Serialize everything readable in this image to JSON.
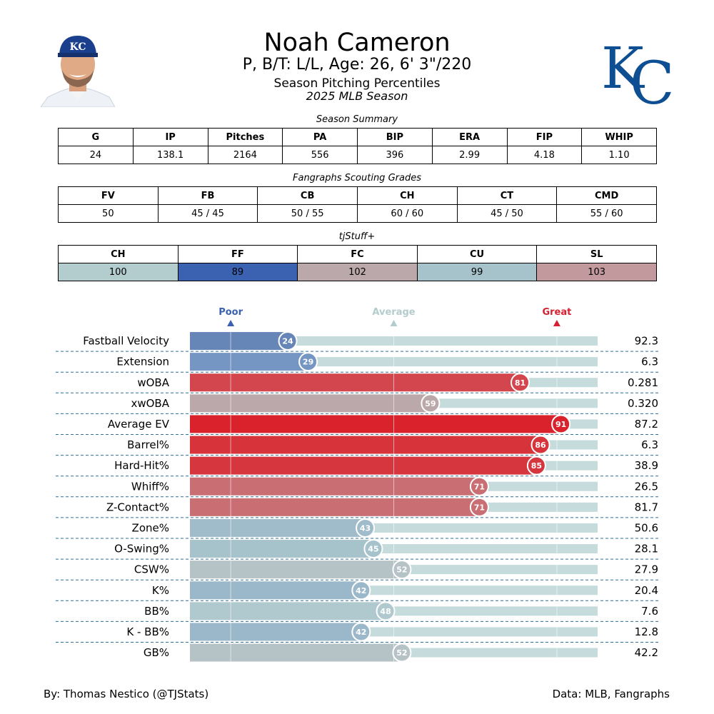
{
  "header": {
    "name": "Noah Cameron",
    "info": "P, B/T: L/L, Age: 26, 6' 3\"/220",
    "subtitle": "Season Pitching Percentiles",
    "season": "2025 MLB Season"
  },
  "summary": {
    "caption": "Season Summary",
    "columns": [
      "G",
      "IP",
      "Pitches",
      "PA",
      "BIP",
      "ERA",
      "FIP",
      "WHIP"
    ],
    "values": [
      "24",
      "138.1",
      "2164",
      "556",
      "396",
      "2.99",
      "4.18",
      "1.10"
    ]
  },
  "scouting": {
    "caption": "Fangraphs Scouting Grades",
    "columns": [
      "FV",
      "FB",
      "CB",
      "CH",
      "CT",
      "CMD"
    ],
    "values": [
      "50",
      "45 / 45",
      "50 / 55",
      "60 / 60",
      "45 / 50",
      "55 / 60"
    ]
  },
  "tjstuff": {
    "caption": "tjStuff+",
    "columns": [
      "CH",
      "FF",
      "FC",
      "CU",
      "SL"
    ],
    "values": [
      "100",
      "89",
      "102",
      "99",
      "103"
    ],
    "colors": [
      "#b3cccd",
      "#3a62b0",
      "#bba8aa",
      "#a6c3cb",
      "#c2999c"
    ]
  },
  "chart_data": {
    "type": "bar",
    "orientation": "horizontal",
    "xlim": [
      0,
      100
    ],
    "scale_labels": {
      "poor": "Poor",
      "average": "Average",
      "great": "Great"
    },
    "scale_colors": {
      "poor": "#3a62b0",
      "average": "#b3cccd",
      "great": "#d42030"
    },
    "categories": [
      "Fastball Velocity",
      "Extension",
      "wOBA",
      "xwOBA",
      "Average EV",
      "Barrel%",
      "Hard-Hit%",
      "Whiff%",
      "Z-Contact%",
      "Zone%",
      "O-Swing%",
      "CSW%",
      "K%",
      "BB%",
      "K - BB%",
      "GB%"
    ],
    "percentiles": [
      24,
      29,
      81,
      59,
      91,
      86,
      85,
      71,
      71,
      43,
      45,
      52,
      42,
      48,
      42,
      52
    ],
    "stat_values": [
      "92.3",
      "6.3",
      "0.281",
      "0.320",
      "87.2",
      "6.3",
      "38.9",
      "26.5",
      "81.7",
      "50.6",
      "28.1",
      "27.9",
      "20.4",
      "7.6",
      "12.8",
      "42.2"
    ],
    "bar_colors": [
      "#6686b8",
      "#7595c2",
      "#d4464e",
      "#bba8aa",
      "#d9222b",
      "#d6333b",
      "#d6363e",
      "#c96e73",
      "#c96e73",
      "#a0bccb",
      "#a6c3cb",
      "#b6c3c6",
      "#9bb8ca",
      "#b0c9cf",
      "#9bb8ca",
      "#b6c3c6"
    ],
    "grid": true
  },
  "footer": {
    "credit": "By: Thomas Nestico (@TJStats)",
    "source": "Data: MLB, Fangraphs"
  }
}
